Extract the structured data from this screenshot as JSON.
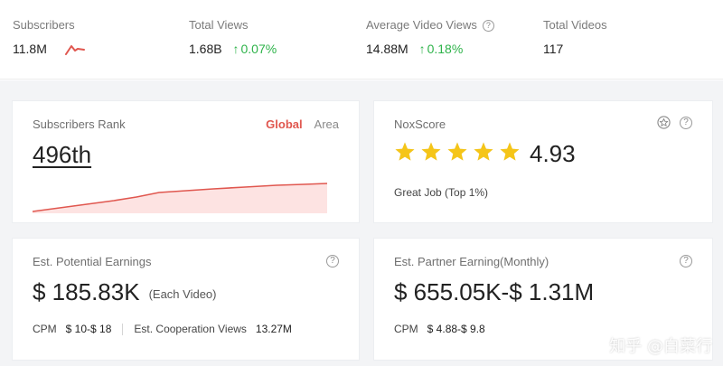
{
  "stats": [
    {
      "label": "Subscribers",
      "value": "11.8M",
      "change": ""
    },
    {
      "label": "Total Views",
      "value": "1.68B",
      "change": "0.07%"
    },
    {
      "label": "Average Video Views",
      "value": "14.88M",
      "change": "0.18%"
    },
    {
      "label": "Total Videos",
      "value": "117",
      "change": ""
    }
  ],
  "help_glyph": "?",
  "up_arrow": "↑",
  "rank_card": {
    "title": "Subscribers Rank",
    "tab_global": "Global",
    "tab_area": "Area",
    "value": "496th",
    "trend_color": "#e0574f"
  },
  "nox_card": {
    "title": "NoxScore",
    "score": "4.93",
    "rating": 4.93,
    "caption": "Great Job (Top 1%)",
    "star_color": "#f5c518"
  },
  "potential_card": {
    "title": "Est. Potential Earnings",
    "value": "$ 185.83K",
    "note": "(Each Video)",
    "cpm_label": "CPM",
    "cpm_value": "$ 10-$ 18",
    "coop_label": "Est. Cooperation Views",
    "coop_value": "13.27M"
  },
  "partner_card": {
    "title": "Est. Partner Earning(Monthly)",
    "value": "$ 655.05K-$ 1.31M",
    "cpm_label": "CPM",
    "cpm_value": "$ 4.88-$ 9.8"
  },
  "watermark": "知乎 @白菜行",
  "colors": {
    "accent_red": "#e0574f",
    "positive_green": "#2eb34a",
    "background": "#f3f4f6"
  }
}
